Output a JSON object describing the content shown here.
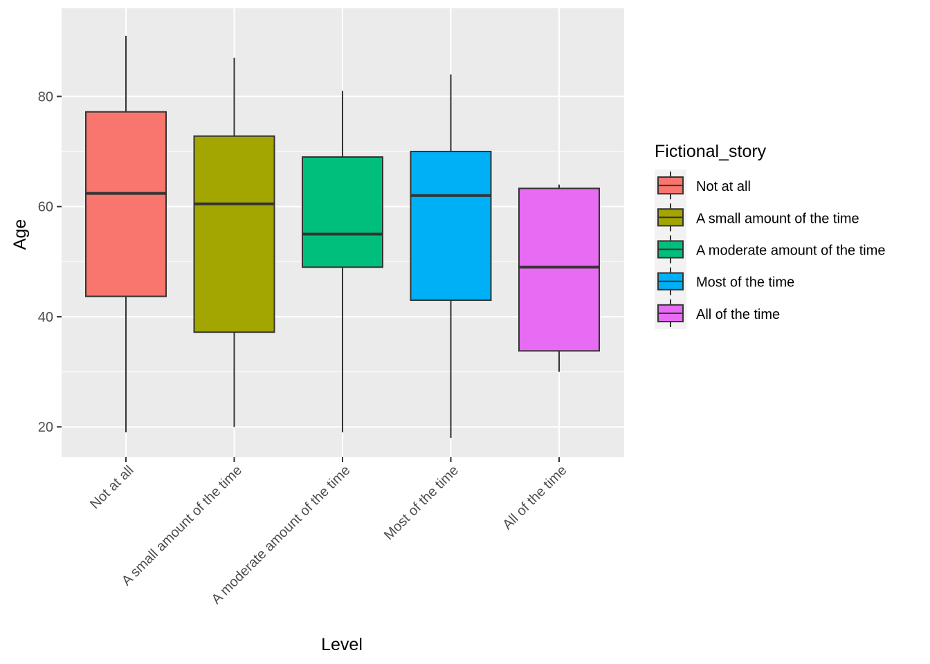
{
  "chart_data": {
    "type": "boxplot",
    "xlabel": "Level",
    "ylabel": "Age",
    "ylim": [
      14.5,
      96
    ],
    "yticks": [
      20,
      40,
      60,
      80
    ],
    "grid": true,
    "legend": {
      "title": "Fictional_story",
      "placement": "right"
    },
    "categories": [
      "Not at all",
      "A small amount of the time",
      "A moderate amount of the time",
      "Most of the time",
      "All of the time"
    ],
    "colors": [
      "#F8766D",
      "#A3A500",
      "#00BF7D",
      "#00B0F6",
      "#E76BF3"
    ],
    "boxes": [
      {
        "category": "Not at all",
        "min": 19,
        "q1": 43.7,
        "median": 62.4,
        "q3": 77.2,
        "max": 91
      },
      {
        "category": "A small amount of the time",
        "min": 20,
        "q1": 37.2,
        "median": 60.5,
        "q3": 72.8,
        "max": 87
      },
      {
        "category": "A moderate amount of the time",
        "min": 19,
        "q1": 49,
        "median": 55,
        "q3": 69,
        "max": 81
      },
      {
        "category": "Most of the time",
        "min": 18,
        "q1": 43,
        "median": 62,
        "q3": 70,
        "max": 84
      },
      {
        "category": "All of the time",
        "min": 30,
        "q1": 33.8,
        "median": 49,
        "q3": 63.3,
        "max": 64
      }
    ]
  }
}
